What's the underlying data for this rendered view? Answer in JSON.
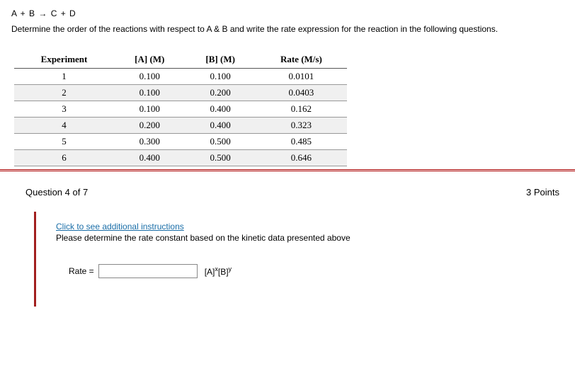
{
  "equation": "A + B → C + D",
  "instruction": "Determine the order of the reactions with respect to A & B and write the rate expression for the reaction in the following questions.",
  "table": {
    "columns": [
      "Experiment",
      "[A] (M)",
      "[B] (M)",
      "Rate (M/s)"
    ],
    "rows": [
      [
        "1",
        "0.100",
        "0.100",
        "0.0101"
      ],
      [
        "2",
        "0.100",
        "0.200",
        "0.0403"
      ],
      [
        "3",
        "0.100",
        "0.400",
        "0.162"
      ],
      [
        "4",
        "0.200",
        "0.400",
        "0.323"
      ],
      [
        "5",
        "0.300",
        "0.500",
        "0.485"
      ],
      [
        "6",
        "0.400",
        "0.500",
        "0.646"
      ]
    ],
    "alt_row_bg": "#f0f0f0",
    "border_color": "#999"
  },
  "question": {
    "label": "Question 4 of 7",
    "points": "3 Points",
    "link_text": "Click to see additional instructions",
    "prompt": "Please determine the rate constant based on the kinetic data presented above",
    "rate_label": "Rate =",
    "rate_input_value": "",
    "unit_html": "[A]ˣ[B]ʸ",
    "unit_a": "[A]",
    "unit_a_sup": "x",
    "unit_b": "[B]",
    "unit_b_sup": "y"
  },
  "colors": {
    "accent_border": "#a2201f",
    "hr_color": "#a00",
    "link_color": "#1a6ea8"
  }
}
